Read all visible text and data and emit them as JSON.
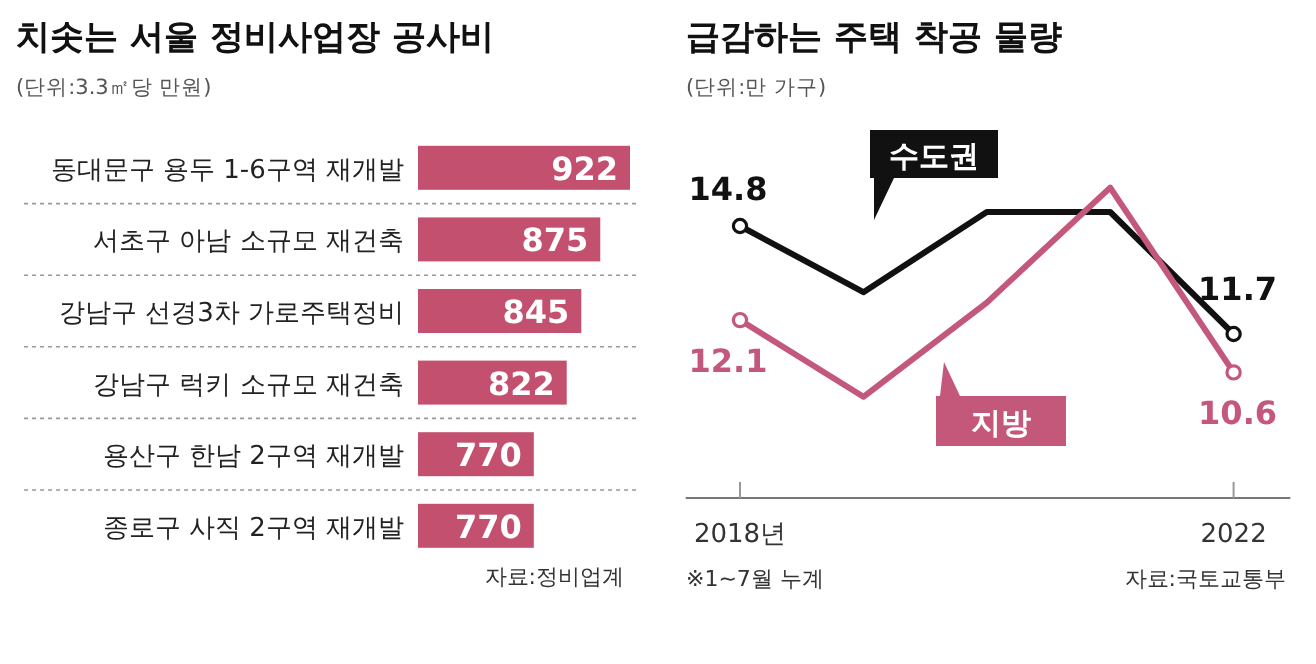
{
  "chart_data": [
    {
      "type": "bar",
      "orientation": "horizontal",
      "title": "치솟는 서울 정비사업장 공사비",
      "subtitle": "(단위:3.3㎡당 만원)",
      "categories": [
        "동대문구 용두 1-6구역 재개발",
        "서초구 아남 소규모 재건축",
        "강남구 선경3차 가로주택정비",
        "강남구 럭키 소규모 재건축",
        "용산구 한남 2구역 재개발",
        "종로구 사직 2구역 재개발"
      ],
      "values": [
        922,
        875,
        845,
        822,
        770,
        770
      ],
      "color": "#c4506f",
      "xlim": [
        587,
        935
      ],
      "tick_labels": "y",
      "data_labels": true,
      "grid": "y",
      "annotations": [
        "자료:정비업계"
      ]
    },
    {
      "type": "line",
      "title": "급감하는 주택 착공 물량",
      "subtitle": "(단위:만 가구)",
      "x": [
        2018,
        2019,
        2020,
        2021,
        2022
      ],
      "series": [
        {
          "name": "수도권",
          "color": "#111111",
          "values": [
            14.8,
            12.9,
            15.2,
            15.2,
            11.7
          ],
          "value_labels": [
            "14.8",
            null,
            null,
            null,
            "11.7"
          ]
        },
        {
          "name": "지방",
          "color": "#c4587a",
          "values": [
            12.1,
            9.9,
            12.6,
            15.9,
            10.6
          ],
          "value_labels": [
            "12.1",
            null,
            null,
            null,
            "10.6"
          ]
        }
      ],
      "xlim": [
        2017.56,
        2022.46
      ],
      "xticks": [
        {
          "value": 2018,
          "label": "2018년"
        },
        2022
      ],
      "tick_labels": "x",
      "line_style": "solid",
      "annotations": [
        "※1~7월 누계",
        "자료:국토교통부"
      ]
    }
  ]
}
